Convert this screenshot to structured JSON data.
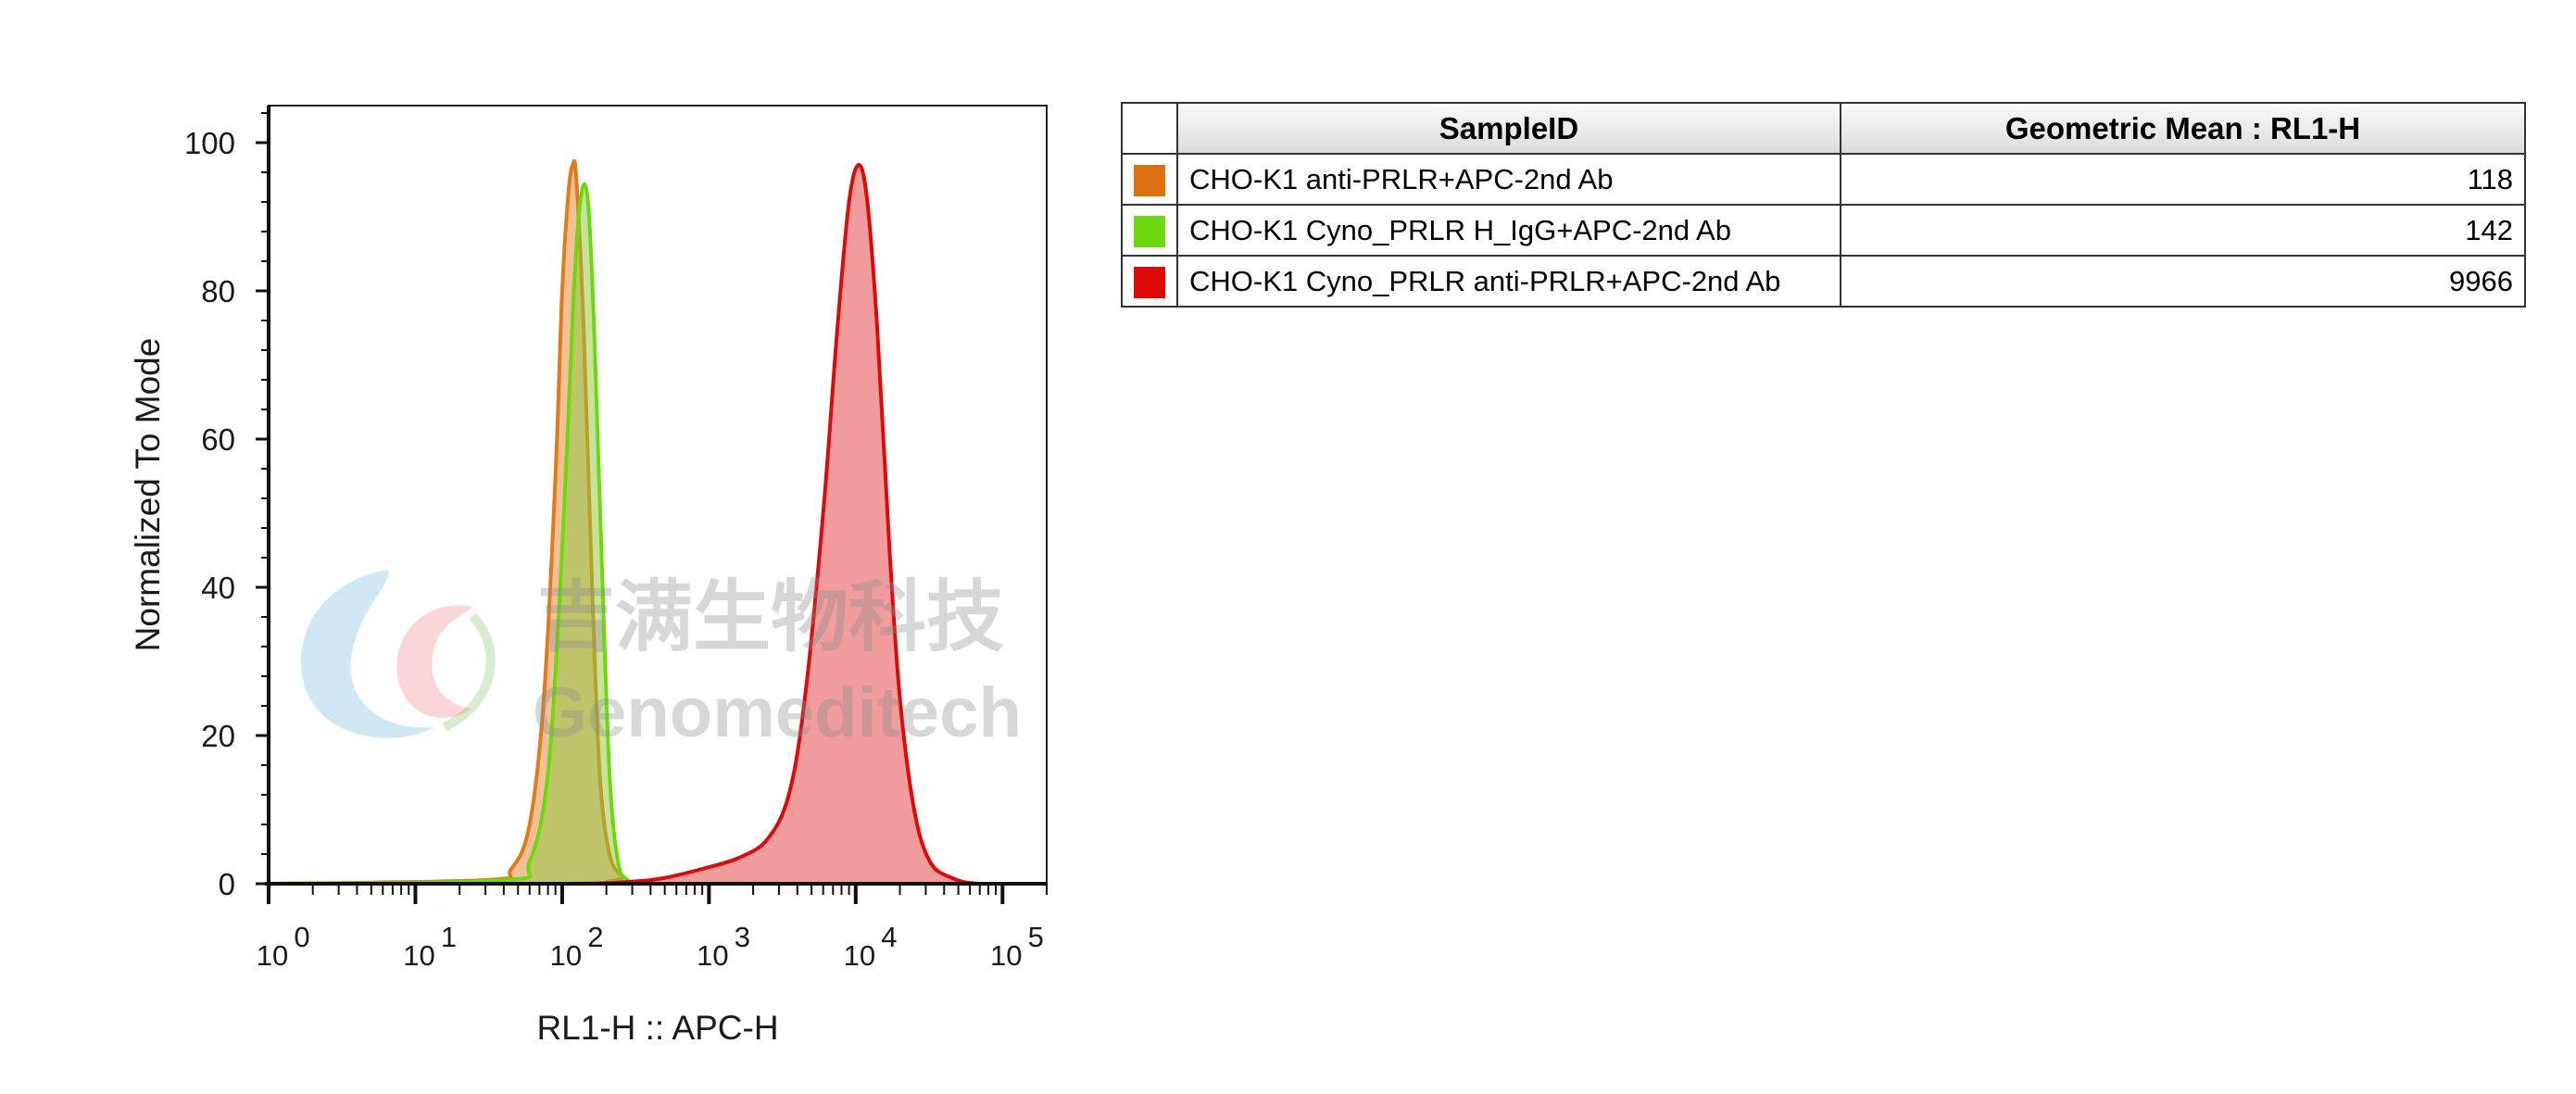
{
  "chart_data": {
    "type": "area",
    "xlabel": "RL1-H :: APC-H",
    "ylabel": "Normalized To Mode",
    "x_scale": "log",
    "xlim": [
      1,
      200000
    ],
    "ylim": [
      0,
      105
    ],
    "x_ticks": [
      {
        "value": 1,
        "base": "10",
        "exp": "0"
      },
      {
        "value": 10,
        "base": "10",
        "exp": "1"
      },
      {
        "value": 100,
        "base": "10",
        "exp": "2"
      },
      {
        "value": 1000,
        "base": "10",
        "exp": "3"
      },
      {
        "value": 10000,
        "base": "10",
        "exp": "4"
      },
      {
        "value": 100000,
        "base": "10",
        "exp": "5"
      }
    ],
    "y_ticks": [
      0,
      20,
      40,
      60,
      80,
      100
    ],
    "grid": false,
    "legend_position": "right (table)",
    "series": [
      {
        "name": "CHO-K1 anti-PRLR+APC-2nd Ab",
        "color": "#E07B17",
        "fill": "rgba(230,140,70,0.55)",
        "points": [
          [
            1,
            0
          ],
          [
            30,
            0.5
          ],
          [
            45,
            2
          ],
          [
            60,
            8
          ],
          [
            75,
            25
          ],
          [
            90,
            55
          ],
          [
            100,
            80
          ],
          [
            110,
            93
          ],
          [
            118,
            97
          ],
          [
            125,
            95
          ],
          [
            140,
            75
          ],
          [
            160,
            40
          ],
          [
            180,
            15
          ],
          [
            210,
            4
          ],
          [
            260,
            1
          ],
          [
            350,
            0
          ],
          [
            200000,
            0
          ]
        ]
      },
      {
        "name": "CHO-K1 Cyno_PRLR H_IgG+APC-2nd Ab",
        "color": "#6ED80F",
        "fill": "rgba(140,200,60,0.5)",
        "points": [
          [
            1,
            0
          ],
          [
            40,
            0.5
          ],
          [
            60,
            3
          ],
          [
            80,
            15
          ],
          [
            100,
            45
          ],
          [
            120,
            80
          ],
          [
            135,
            93
          ],
          [
            150,
            92
          ],
          [
            165,
            75
          ],
          [
            185,
            45
          ],
          [
            210,
            15
          ],
          [
            240,
            3
          ],
          [
            280,
            0.5
          ],
          [
            350,
            0
          ],
          [
            200000,
            0
          ]
        ]
      },
      {
        "name": "CHO-K1 Cyno_PRLR anti-PRLR+APC-2nd Ab",
        "color": "#D90B0B",
        "fill": "rgba(230,90,90,0.6)",
        "points": [
          [
            1,
            0
          ],
          [
            100,
            0
          ],
          [
            300,
            0.3
          ],
          [
            500,
            0.8
          ],
          [
            900,
            2
          ],
          [
            1600,
            3.5
          ],
          [
            2500,
            6
          ],
          [
            3500,
            12
          ],
          [
            4500,
            25
          ],
          [
            6000,
            50
          ],
          [
            7500,
            75
          ],
          [
            9000,
            92
          ],
          [
            10500,
            97
          ],
          [
            12000,
            92
          ],
          [
            14000,
            75
          ],
          [
            17000,
            45
          ],
          [
            20000,
            25
          ],
          [
            25000,
            10
          ],
          [
            32000,
            3
          ],
          [
            45000,
            0.8
          ],
          [
            70000,
            0
          ],
          [
            200000,
            0
          ]
        ]
      }
    ]
  },
  "legend_table": {
    "header_sample": "SampleID",
    "header_value": "Geometric Mean : RL1-H",
    "rows": [
      {
        "name": "CHO-K1 anti-PRLR+APC-2nd Ab",
        "value": "118",
        "color": "#DD7012"
      },
      {
        "name": "CHO-K1 Cyno_PRLR H_IgG+APC-2nd Ab",
        "value": "142",
        "color": "#6ED80F"
      },
      {
        "name": "CHO-K1 Cyno_PRLR anti-PRLR+APC-2nd Ab",
        "value": "9966",
        "color": "#DE0A0A"
      }
    ]
  },
  "watermark": {
    "cn_text": "吉满生物科技",
    "en_text": "Genomeditech"
  }
}
